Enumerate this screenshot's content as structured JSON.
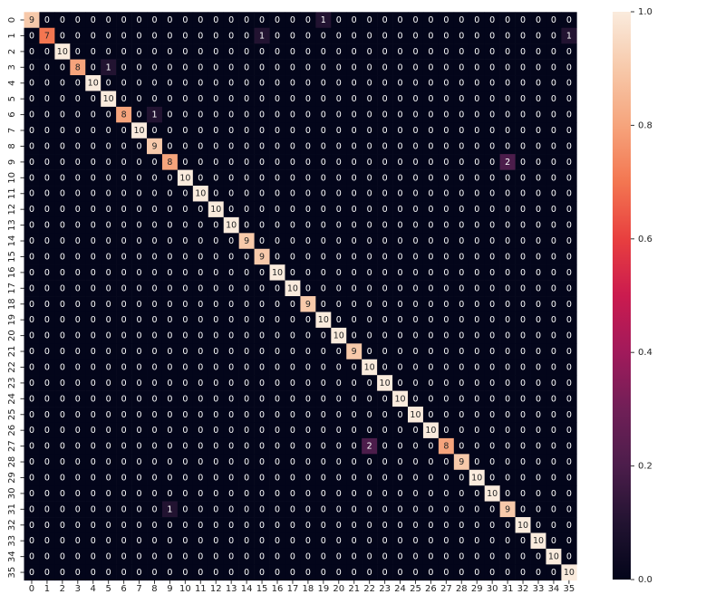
{
  "chart_data": {
    "type": "heatmap",
    "colormap": "rocket",
    "x": [
      0,
      1,
      2,
      3,
      4,
      5,
      6,
      7,
      8,
      9,
      10,
      11,
      12,
      13,
      14,
      15,
      16,
      17,
      18,
      19,
      20,
      21,
      22,
      23,
      24,
      25,
      26,
      27,
      28,
      29,
      30,
      31,
      32,
      33,
      34,
      35
    ],
    "y": [
      0,
      1,
      2,
      3,
      4,
      5,
      6,
      7,
      8,
      9,
      10,
      11,
      12,
      13,
      14,
      15,
      16,
      17,
      18,
      19,
      20,
      21,
      22,
      23,
      24,
      25,
      26,
      27,
      28,
      29,
      30,
      31,
      32,
      33,
      34,
      35
    ],
    "values": [
      [
        9,
        0,
        0,
        0,
        0,
        0,
        0,
        0,
        0,
        0,
        0,
        0,
        0,
        0,
        0,
        0,
        0,
        0,
        0,
        1,
        0,
        0,
        0,
        0,
        0,
        0,
        0,
        0,
        0,
        0,
        0,
        0,
        0,
        0,
        0,
        0
      ],
      [
        0,
        7,
        0,
        0,
        0,
        0,
        0,
        0,
        0,
        0,
        0,
        0,
        0,
        0,
        0,
        1,
        0,
        0,
        0,
        0,
        0,
        0,
        0,
        0,
        0,
        0,
        0,
        0,
        0,
        0,
        0,
        0,
        0,
        0,
        0,
        1
      ],
      [
        0,
        0,
        10,
        0,
        0,
        0,
        0,
        0,
        0,
        0,
        0,
        0,
        0,
        0,
        0,
        0,
        0,
        0,
        0,
        0,
        0,
        0,
        0,
        0,
        0,
        0,
        0,
        0,
        0,
        0,
        0,
        0,
        0,
        0,
        0,
        0
      ],
      [
        0,
        0,
        0,
        8,
        0,
        1,
        0,
        0,
        0,
        0,
        0,
        0,
        0,
        0,
        0,
        0,
        0,
        0,
        0,
        0,
        0,
        0,
        0,
        0,
        0,
        0,
        0,
        0,
        0,
        0,
        0,
        0,
        0,
        0,
        0,
        0
      ],
      [
        0,
        0,
        0,
        0,
        10,
        0,
        0,
        0,
        0,
        0,
        0,
        0,
        0,
        0,
        0,
        0,
        0,
        0,
        0,
        0,
        0,
        0,
        0,
        0,
        0,
        0,
        0,
        0,
        0,
        0,
        0,
        0,
        0,
        0,
        0,
        0
      ],
      [
        0,
        0,
        0,
        0,
        0,
        10,
        0,
        0,
        0,
        0,
        0,
        0,
        0,
        0,
        0,
        0,
        0,
        0,
        0,
        0,
        0,
        0,
        0,
        0,
        0,
        0,
        0,
        0,
        0,
        0,
        0,
        0,
        0,
        0,
        0,
        0
      ],
      [
        0,
        0,
        0,
        0,
        0,
        0,
        8,
        0,
        1,
        0,
        0,
        0,
        0,
        0,
        0,
        0,
        0,
        0,
        0,
        0,
        0,
        0,
        0,
        0,
        0,
        0,
        0,
        0,
        0,
        0,
        0,
        0,
        0,
        0,
        0,
        0
      ],
      [
        0,
        0,
        0,
        0,
        0,
        0,
        0,
        10,
        0,
        0,
        0,
        0,
        0,
        0,
        0,
        0,
        0,
        0,
        0,
        0,
        0,
        0,
        0,
        0,
        0,
        0,
        0,
        0,
        0,
        0,
        0,
        0,
        0,
        0,
        0,
        0
      ],
      [
        0,
        0,
        0,
        0,
        0,
        0,
        0,
        0,
        9,
        0,
        0,
        0,
        0,
        0,
        0,
        0,
        0,
        0,
        0,
        0,
        0,
        0,
        0,
        0,
        0,
        0,
        0,
        0,
        0,
        0,
        0,
        0,
        0,
        0,
        0,
        0
      ],
      [
        0,
        0,
        0,
        0,
        0,
        0,
        0,
        0,
        0,
        8,
        0,
        0,
        0,
        0,
        0,
        0,
        0,
        0,
        0,
        0,
        0,
        0,
        0,
        0,
        0,
        0,
        0,
        0,
        0,
        0,
        0,
        2,
        0,
        0,
        0,
        0
      ],
      [
        0,
        0,
        0,
        0,
        0,
        0,
        0,
        0,
        0,
        0,
        10,
        0,
        0,
        0,
        0,
        0,
        0,
        0,
        0,
        0,
        0,
        0,
        0,
        0,
        0,
        0,
        0,
        0,
        0,
        0,
        0,
        0,
        0,
        0,
        0,
        0
      ],
      [
        0,
        0,
        0,
        0,
        0,
        0,
        0,
        0,
        0,
        0,
        0,
        10,
        0,
        0,
        0,
        0,
        0,
        0,
        0,
        0,
        0,
        0,
        0,
        0,
        0,
        0,
        0,
        0,
        0,
        0,
        0,
        0,
        0,
        0,
        0,
        0
      ],
      [
        0,
        0,
        0,
        0,
        0,
        0,
        0,
        0,
        0,
        0,
        0,
        0,
        10,
        0,
        0,
        0,
        0,
        0,
        0,
        0,
        0,
        0,
        0,
        0,
        0,
        0,
        0,
        0,
        0,
        0,
        0,
        0,
        0,
        0,
        0,
        0
      ],
      [
        0,
        0,
        0,
        0,
        0,
        0,
        0,
        0,
        0,
        0,
        0,
        0,
        0,
        10,
        0,
        0,
        0,
        0,
        0,
        0,
        0,
        0,
        0,
        0,
        0,
        0,
        0,
        0,
        0,
        0,
        0,
        0,
        0,
        0,
        0,
        0
      ],
      [
        0,
        0,
        0,
        0,
        0,
        0,
        0,
        0,
        0,
        0,
        0,
        0,
        0,
        0,
        9,
        0,
        0,
        0,
        0,
        0,
        0,
        0,
        0,
        0,
        0,
        0,
        0,
        0,
        0,
        0,
        0,
        0,
        0,
        0,
        0,
        0
      ],
      [
        0,
        0,
        0,
        0,
        0,
        0,
        0,
        0,
        0,
        0,
        0,
        0,
        0,
        0,
        0,
        9,
        0,
        0,
        0,
        0,
        0,
        0,
        0,
        0,
        0,
        0,
        0,
        0,
        0,
        0,
        0,
        0,
        0,
        0,
        0,
        0
      ],
      [
        0,
        0,
        0,
        0,
        0,
        0,
        0,
        0,
        0,
        0,
        0,
        0,
        0,
        0,
        0,
        0,
        10,
        0,
        0,
        0,
        0,
        0,
        0,
        0,
        0,
        0,
        0,
        0,
        0,
        0,
        0,
        0,
        0,
        0,
        0,
        0
      ],
      [
        0,
        0,
        0,
        0,
        0,
        0,
        0,
        0,
        0,
        0,
        0,
        0,
        0,
        0,
        0,
        0,
        0,
        10,
        0,
        0,
        0,
        0,
        0,
        0,
        0,
        0,
        0,
        0,
        0,
        0,
        0,
        0,
        0,
        0,
        0,
        0
      ],
      [
        0,
        0,
        0,
        0,
        0,
        0,
        0,
        0,
        0,
        0,
        0,
        0,
        0,
        0,
        0,
        0,
        0,
        0,
        9,
        0,
        0,
        0,
        0,
        0,
        0,
        0,
        0,
        0,
        0,
        0,
        0,
        0,
        0,
        0,
        0,
        0
      ],
      [
        0,
        0,
        0,
        0,
        0,
        0,
        0,
        0,
        0,
        0,
        0,
        0,
        0,
        0,
        0,
        0,
        0,
        0,
        0,
        10,
        0,
        0,
        0,
        0,
        0,
        0,
        0,
        0,
        0,
        0,
        0,
        0,
        0,
        0,
        0,
        0
      ],
      [
        0,
        0,
        0,
        0,
        0,
        0,
        0,
        0,
        0,
        0,
        0,
        0,
        0,
        0,
        0,
        0,
        0,
        0,
        0,
        0,
        10,
        0,
        0,
        0,
        0,
        0,
        0,
        0,
        0,
        0,
        0,
        0,
        0,
        0,
        0,
        0
      ],
      [
        0,
        0,
        0,
        0,
        0,
        0,
        0,
        0,
        0,
        0,
        0,
        0,
        0,
        0,
        0,
        0,
        0,
        0,
        0,
        0,
        0,
        9,
        0,
        0,
        0,
        0,
        0,
        0,
        0,
        0,
        0,
        0,
        0,
        0,
        0,
        0
      ],
      [
        0,
        0,
        0,
        0,
        0,
        0,
        0,
        0,
        0,
        0,
        0,
        0,
        0,
        0,
        0,
        0,
        0,
        0,
        0,
        0,
        0,
        0,
        10,
        0,
        0,
        0,
        0,
        0,
        0,
        0,
        0,
        0,
        0,
        0,
        0,
        0
      ],
      [
        0,
        0,
        0,
        0,
        0,
        0,
        0,
        0,
        0,
        0,
        0,
        0,
        0,
        0,
        0,
        0,
        0,
        0,
        0,
        0,
        0,
        0,
        0,
        10,
        0,
        0,
        0,
        0,
        0,
        0,
        0,
        0,
        0,
        0,
        0,
        0
      ],
      [
        0,
        0,
        0,
        0,
        0,
        0,
        0,
        0,
        0,
        0,
        0,
        0,
        0,
        0,
        0,
        0,
        0,
        0,
        0,
        0,
        0,
        0,
        0,
        0,
        10,
        0,
        0,
        0,
        0,
        0,
        0,
        0,
        0,
        0,
        0,
        0
      ],
      [
        0,
        0,
        0,
        0,
        0,
        0,
        0,
        0,
        0,
        0,
        0,
        0,
        0,
        0,
        0,
        0,
        0,
        0,
        0,
        0,
        0,
        0,
        0,
        0,
        0,
        10,
        0,
        0,
        0,
        0,
        0,
        0,
        0,
        0,
        0,
        0
      ],
      [
        0,
        0,
        0,
        0,
        0,
        0,
        0,
        0,
        0,
        0,
        0,
        0,
        0,
        0,
        0,
        0,
        0,
        0,
        0,
        0,
        0,
        0,
        0,
        0,
        0,
        0,
        10,
        0,
        0,
        0,
        0,
        0,
        0,
        0,
        0,
        0
      ],
      [
        0,
        0,
        0,
        0,
        0,
        0,
        0,
        0,
        0,
        0,
        0,
        0,
        0,
        0,
        0,
        0,
        0,
        0,
        0,
        0,
        0,
        0,
        2,
        0,
        0,
        0,
        0,
        8,
        0,
        0,
        0,
        0,
        0,
        0,
        0,
        0
      ],
      [
        0,
        0,
        0,
        0,
        0,
        0,
        0,
        0,
        0,
        0,
        0,
        0,
        0,
        0,
        0,
        0,
        0,
        0,
        0,
        0,
        0,
        0,
        0,
        0,
        0,
        0,
        0,
        0,
        9,
        0,
        0,
        0,
        0,
        0,
        0,
        0
      ],
      [
        0,
        0,
        0,
        0,
        0,
        0,
        0,
        0,
        0,
        0,
        0,
        0,
        0,
        0,
        0,
        0,
        0,
        0,
        0,
        0,
        0,
        0,
        0,
        0,
        0,
        0,
        0,
        0,
        0,
        10,
        0,
        0,
        0,
        0,
        0,
        0
      ],
      [
        0,
        0,
        0,
        0,
        0,
        0,
        0,
        0,
        0,
        0,
        0,
        0,
        0,
        0,
        0,
        0,
        0,
        0,
        0,
        0,
        0,
        0,
        0,
        0,
        0,
        0,
        0,
        0,
        0,
        0,
        10,
        0,
        0,
        0,
        0,
        0
      ],
      [
        0,
        0,
        0,
        0,
        0,
        0,
        0,
        0,
        0,
        1,
        0,
        0,
        0,
        0,
        0,
        0,
        0,
        0,
        0,
        0,
        0,
        0,
        0,
        0,
        0,
        0,
        0,
        0,
        0,
        0,
        0,
        9,
        0,
        0,
        0,
        0
      ],
      [
        0,
        0,
        0,
        0,
        0,
        0,
        0,
        0,
        0,
        0,
        0,
        0,
        0,
        0,
        0,
        0,
        0,
        0,
        0,
        0,
        0,
        0,
        0,
        0,
        0,
        0,
        0,
        0,
        0,
        0,
        0,
        0,
        10,
        0,
        0,
        0
      ],
      [
        0,
        0,
        0,
        0,
        0,
        0,
        0,
        0,
        0,
        0,
        0,
        0,
        0,
        0,
        0,
        0,
        0,
        0,
        0,
        0,
        0,
        0,
        0,
        0,
        0,
        0,
        0,
        0,
        0,
        0,
        0,
        0,
        0,
        10,
        0,
        0
      ],
      [
        0,
        0,
        0,
        0,
        0,
        0,
        0,
        0,
        0,
        0,
        0,
        0,
        0,
        0,
        0,
        0,
        0,
        0,
        0,
        0,
        0,
        0,
        0,
        0,
        0,
        0,
        0,
        0,
        0,
        0,
        0,
        0,
        0,
        0,
        10,
        0
      ],
      [
        0,
        0,
        0,
        0,
        0,
        0,
        0,
        0,
        0,
        0,
        0,
        0,
        0,
        0,
        0,
        0,
        0,
        0,
        0,
        0,
        0,
        0,
        0,
        0,
        0,
        0,
        0,
        0,
        0,
        0,
        0,
        0,
        0,
        0,
        0,
        10
      ]
    ],
    "clim": [
      0,
      1.0
    ],
    "cticks": [
      {
        "value": 0,
        "label": "0.0"
      },
      0.2,
      0.4,
      0.6,
      0.8,
      {
        "value": 1,
        "label": "1.0"
      }
    ]
  }
}
